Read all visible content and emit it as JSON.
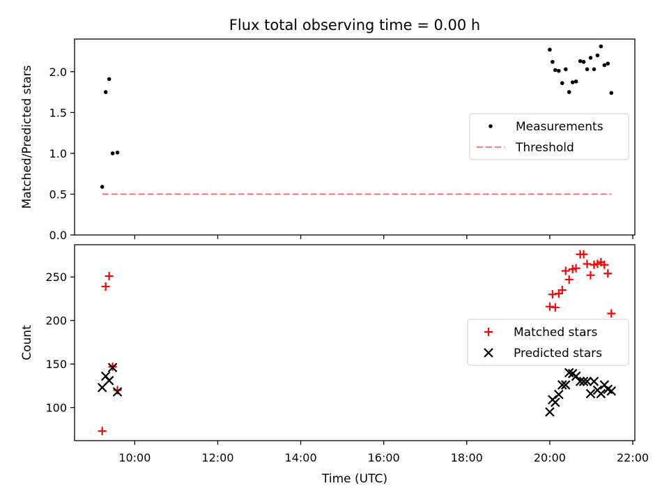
{
  "figure": {
    "title": "Flux total observing time = 0.00 h",
    "xlabel": "Time (UTC)",
    "x_tick_labels": [
      "10:00",
      "12:00",
      "14:00",
      "16:00",
      "18:00",
      "20:00",
      "22:00"
    ],
    "x_tick_hours": [
      10,
      12,
      14,
      16,
      18,
      20,
      22
    ],
    "xlim_hours": [
      8.55,
      22.05
    ]
  },
  "chart_data": [
    {
      "type": "scatter",
      "title": "Flux total observing time = 0.00 h",
      "ylabel": "Matched/Predicted stars",
      "ylim": [
        0,
        2.4
      ],
      "y_ticks": [
        0.0,
        0.5,
        1.0,
        1.5,
        2.0
      ],
      "y_tick_labels": [
        "0.0",
        "0.5",
        "1.0",
        "1.5",
        "2.0"
      ],
      "grid": false,
      "legend_placement": "center-right",
      "series": [
        {
          "name": "Measurements",
          "marker": "dot",
          "color": "#000000",
          "points": [
            {
              "x": "09:13",
              "y": 0.59
            },
            {
              "x": "09:18",
              "y": 1.75
            },
            {
              "x": "09:23",
              "y": 1.91
            },
            {
              "x": "09:28",
              "y": 1.0
            },
            {
              "x": "09:35",
              "y": 1.01
            },
            {
              "x": "20:00",
              "y": 2.27
            },
            {
              "x": "20:04",
              "y": 2.12
            },
            {
              "x": "20:08",
              "y": 2.02
            },
            {
              "x": "20:13",
              "y": 2.01
            },
            {
              "x": "20:18",
              "y": 1.86
            },
            {
              "x": "20:23",
              "y": 2.03
            },
            {
              "x": "20:28",
              "y": 1.75
            },
            {
              "x": "20:33",
              "y": 1.87
            },
            {
              "x": "20:38",
              "y": 1.88
            },
            {
              "x": "20:44",
              "y": 2.13
            },
            {
              "x": "20:49",
              "y": 2.12
            },
            {
              "x": "20:54",
              "y": 2.03
            },
            {
              "x": "20:59",
              "y": 2.17
            },
            {
              "x": "21:04",
              "y": 2.03
            },
            {
              "x": "21:09",
              "y": 2.2
            },
            {
              "x": "21:14",
              "y": 2.31
            },
            {
              "x": "21:19",
              "y": 2.08
            },
            {
              "x": "21:24",
              "y": 2.1
            },
            {
              "x": "21:29",
              "y": 1.74
            }
          ]
        },
        {
          "name": "Threshold",
          "marker": "dashed-line",
          "color": "#ff7f7f",
          "points": [
            {
              "x": "09:13",
              "y": 0.5
            },
            {
              "x": "21:29",
              "y": 0.5
            }
          ]
        }
      ]
    },
    {
      "type": "scatter",
      "ylabel": "Count",
      "ylim": [
        62,
        287
      ],
      "y_ticks": [
        100,
        150,
        200,
        250
      ],
      "y_tick_labels": [
        "100",
        "150",
        "200",
        "250"
      ],
      "grid": false,
      "legend_placement": "center-right",
      "series": [
        {
          "name": "Matched stars",
          "marker": "plus",
          "color": "#ff0000",
          "points": [
            {
              "x": "09:13",
              "y": 73
            },
            {
              "x": "09:18",
              "y": 239
            },
            {
              "x": "09:23",
              "y": 251
            },
            {
              "x": "09:28",
              "y": 147
            },
            {
              "x": "09:35",
              "y": 120
            },
            {
              "x": "20:00",
              "y": 216
            },
            {
              "x": "20:04",
              "y": 230
            },
            {
              "x": "20:08",
              "y": 215
            },
            {
              "x": "20:13",
              "y": 231
            },
            {
              "x": "20:18",
              "y": 235
            },
            {
              "x": "20:23",
              "y": 257
            },
            {
              "x": "20:28",
              "y": 247
            },
            {
              "x": "20:33",
              "y": 259
            },
            {
              "x": "20:38",
              "y": 260
            },
            {
              "x": "20:44",
              "y": 276
            },
            {
              "x": "20:49",
              "y": 276
            },
            {
              "x": "20:54",
              "y": 265
            },
            {
              "x": "20:59",
              "y": 252
            },
            {
              "x": "21:04",
              "y": 264
            },
            {
              "x": "21:09",
              "y": 265
            },
            {
              "x": "21:14",
              "y": 267
            },
            {
              "x": "21:19",
              "y": 264
            },
            {
              "x": "21:24",
              "y": 254
            },
            {
              "x": "21:29",
              "y": 208
            }
          ]
        },
        {
          "name": "Predicted stars",
          "marker": "x",
          "color": "#000000",
          "points": [
            {
              "x": "09:13",
              "y": 123
            },
            {
              "x": "09:18",
              "y": 136
            },
            {
              "x": "09:23",
              "y": 131
            },
            {
              "x": "09:28",
              "y": 146
            },
            {
              "x": "09:35",
              "y": 118
            },
            {
              "x": "20:00",
              "y": 95
            },
            {
              "x": "20:04",
              "y": 109
            },
            {
              "x": "20:08",
              "y": 106
            },
            {
              "x": "20:13",
              "y": 115
            },
            {
              "x": "20:18",
              "y": 126
            },
            {
              "x": "20:23",
              "y": 126
            },
            {
              "x": "20:28",
              "y": 140
            },
            {
              "x": "20:33",
              "y": 139
            },
            {
              "x": "20:38",
              "y": 136
            },
            {
              "x": "20:44",
              "y": 130
            },
            {
              "x": "20:49",
              "y": 130
            },
            {
              "x": "20:54",
              "y": 130
            },
            {
              "x": "20:59",
              "y": 116
            },
            {
              "x": "21:04",
              "y": 130
            },
            {
              "x": "21:09",
              "y": 120
            },
            {
              "x": "21:14",
              "y": 116
            },
            {
              "x": "21:19",
              "y": 126
            },
            {
              "x": "21:24",
              "y": 121
            },
            {
              "x": "21:29",
              "y": 119
            }
          ]
        }
      ]
    }
  ]
}
